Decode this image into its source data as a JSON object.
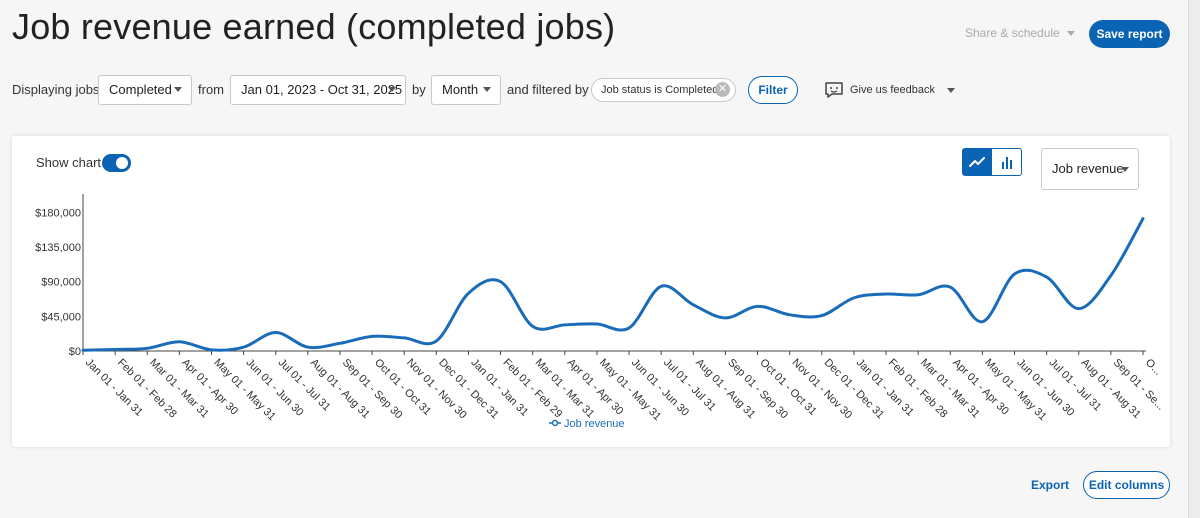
{
  "header": {
    "title": "Job revenue earned (completed jobs)",
    "share_label": "Share & schedule",
    "save_label": "Save report"
  },
  "filters": {
    "displaying_label": "Displaying jobs",
    "status_value": "Completed",
    "from_label": "from",
    "date_range": "Jan 01, 2023 - Oct 31, 2025",
    "by_label": "by",
    "interval": "Month",
    "filtered_label": "and filtered by",
    "chip_label": "Job status is Completed",
    "filter_button": "Filter",
    "feedback_label": "Give us feedback"
  },
  "card": {
    "show_chart_label": "Show chart",
    "show_chart_on": true,
    "metric_select": "Job revenue",
    "chart_types": [
      "line-chart-icon",
      "bar-chart-icon"
    ],
    "active_chart_type": "line"
  },
  "footer": {
    "export_label": "Export",
    "edit_columns_label": "Edit columns"
  },
  "colors": {
    "accent": "#0b63b4",
    "line": "#1a6cb8",
    "axis": "#333333"
  },
  "chart_data": {
    "type": "line",
    "xlabel": "",
    "ylabel": "",
    "ylim": [
      0,
      200000
    ],
    "yticks": [
      0,
      45000,
      90000,
      135000,
      180000
    ],
    "ytick_labels": [
      "$0",
      "$45,000",
      "$90,000",
      "$135,000",
      "$180,000"
    ],
    "grid": false,
    "legend_position": "bottom",
    "categories": [
      "Jan 01 - Jan 31",
      "Feb 01 - Feb 28",
      "Mar 01 - Mar 31",
      "Apr 01 - Apr 30",
      "May 01 - May 31",
      "Jun 01 - Jun 30",
      "Jul 01 - Jul 31",
      "Aug 01 - Aug 31",
      "Sep 01 - Sep 30",
      "Oct 01 - Oct 31",
      "Nov 01 - Nov 30",
      "Dec 01 - Dec 31",
      "Jan 01 - Jan 31",
      "Feb 01 - Feb 29",
      "Mar 01 - Mar 31",
      "Apr 01 - Apr 30",
      "May 01 - May 31",
      "Jun 01 - Jun 30",
      "Jul 01 - Jul 31",
      "Aug 01 - Aug 31",
      "Sep 01 - Sep 30",
      "Oct 01 - Oct 31",
      "Nov 01 - Nov 30",
      "Dec 01 - Dec 31",
      "Jan 01 - Jan 31",
      "Feb 01 - Feb 28",
      "Mar 01 - Mar 31",
      "Apr 01 - Apr 30",
      "May 01 - May 31",
      "Jun 01 - Jun 30",
      "Jul 01 - Jul 31",
      "Aug 01 - Aug 31",
      "Sep 01 - Se...",
      "O..."
    ],
    "series": [
      {
        "name": "Job revenue",
        "values": [
          1000,
          2000,
          3500,
          12000,
          1500,
          5000,
          24000,
          5000,
          10000,
          19000,
          17000,
          13000,
          75000,
          90000,
          32000,
          34000,
          35000,
          30000,
          84000,
          60000,
          43000,
          58000,
          47000,
          46000,
          69000,
          74000,
          73000,
          83000,
          38000,
          100000,
          96000,
          55000,
          98000,
          172000
        ]
      }
    ]
  }
}
